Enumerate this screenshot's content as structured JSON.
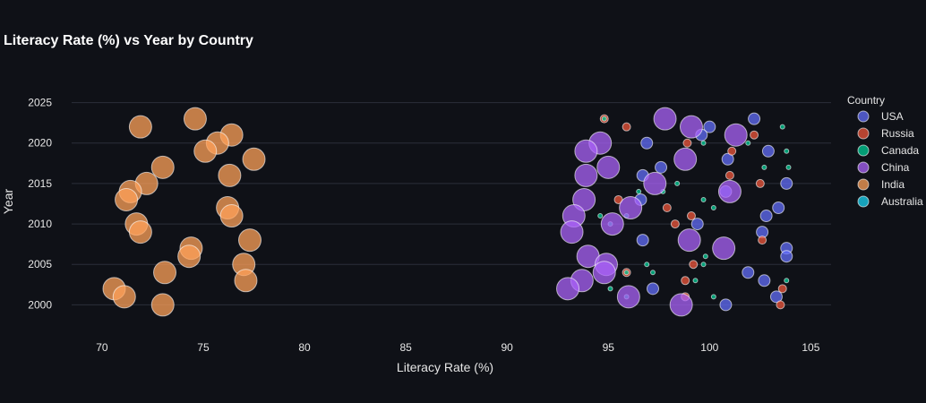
{
  "chart_data": {
    "type": "scatter",
    "title": "Literacy Rate (%) vs Year by Country",
    "xlabel": "Literacy Rate (%)",
    "ylabel": "Year",
    "xlim": [
      68.5,
      106
    ],
    "ylim": [
      1996.5,
      2027.5
    ],
    "x_ticks": [
      70,
      75,
      80,
      85,
      90,
      95,
      100,
      105
    ],
    "y_ticks": [
      2000,
      2005,
      2010,
      2015,
      2020,
      2025
    ],
    "grid": true,
    "legend_title": "Country",
    "legend_position": "right",
    "series": [
      {
        "name": "USA",
        "color": "#636efa",
        "size": 7,
        "points": [
          [
            102.2,
            2023
          ],
          [
            100.0,
            2022
          ],
          [
            99.6,
            2021
          ],
          [
            96.9,
            2020
          ],
          [
            102.9,
            2019
          ],
          [
            100.9,
            2018
          ],
          [
            97.6,
            2017
          ],
          [
            96.7,
            2016
          ],
          [
            103.8,
            2015
          ],
          [
            100.8,
            2014
          ],
          [
            96.6,
            2013
          ],
          [
            103.4,
            2012
          ],
          [
            102.8,
            2011
          ],
          [
            99.4,
            2010
          ],
          [
            102.6,
            2009
          ],
          [
            96.7,
            2008
          ],
          [
            103.8,
            2007
          ],
          [
            103.8,
            2006
          ],
          [
            101.9,
            2004
          ],
          [
            102.7,
            2003
          ],
          [
            97.2,
            2002
          ],
          [
            103.3,
            2001
          ],
          [
            100.8,
            2000
          ]
        ]
      },
      {
        "name": "Russia",
        "color": "#ef553b",
        "size": 5,
        "points": [
          [
            94.8,
            2023
          ],
          [
            95.9,
            2022
          ],
          [
            102.2,
            2021
          ],
          [
            98.9,
            2020
          ],
          [
            101.1,
            2019
          ],
          [
            101.0,
            2016
          ],
          [
            102.5,
            2015
          ],
          [
            95.5,
            2013
          ],
          [
            97.9,
            2012
          ],
          [
            99.1,
            2011
          ],
          [
            98.3,
            2010
          ],
          [
            102.6,
            2008
          ],
          [
            99.2,
            2005
          ],
          [
            95.9,
            2004
          ],
          [
            98.8,
            2003
          ],
          [
            103.6,
            2002
          ],
          [
            98.8,
            2001
          ],
          [
            103.5,
            2000
          ]
        ]
      },
      {
        "name": "Canada",
        "color": "#00cc96",
        "size": 2.5,
        "points": [
          [
            94.8,
            2023
          ],
          [
            99.7,
            2020
          ],
          [
            102.7,
            2017
          ],
          [
            96.5,
            2014
          ],
          [
            99.7,
            2013
          ],
          [
            100.2,
            2012
          ],
          [
            94.6,
            2011
          ],
          [
            95.9,
            2011
          ],
          [
            99.8,
            2006
          ],
          [
            96.9,
            2005
          ],
          [
            95.9,
            2004
          ],
          [
            99.3,
            2003
          ],
          [
            103.8,
            2003
          ],
          [
            95.9,
            2001
          ],
          [
            100.2,
            2001
          ],
          [
            103.6,
            2022
          ],
          [
            103.8,
            2019
          ],
          [
            101.9,
            2020
          ],
          [
            103.9,
            2017
          ],
          [
            98.4,
            2015
          ],
          [
            95.1,
            2010
          ],
          [
            95.1,
            2002
          ],
          [
            99.7,
            2005
          ],
          [
            97.2,
            2004
          ],
          [
            97.7,
            2014
          ]
        ]
      },
      {
        "name": "China",
        "color": "#ab63fa",
        "size": 12,
        "points": [
          [
            97.8,
            2023
          ],
          [
            99.1,
            2022
          ],
          [
            101.3,
            2021
          ],
          [
            94.6,
            2020
          ],
          [
            93.9,
            2019
          ],
          [
            98.8,
            2018
          ],
          [
            95.0,
            2017
          ],
          [
            93.9,
            2016
          ],
          [
            97.3,
            2015
          ],
          [
            101.0,
            2014
          ],
          [
            93.8,
            2013
          ],
          [
            96.1,
            2012
          ],
          [
            93.3,
            2011
          ],
          [
            95.2,
            2010
          ],
          [
            93.2,
            2009
          ],
          [
            99.0,
            2008
          ],
          [
            100.7,
            2007
          ],
          [
            94.0,
            2006
          ],
          [
            94.9,
            2005
          ],
          [
            94.8,
            2004
          ],
          [
            93.7,
            2003
          ],
          [
            93.0,
            2002
          ],
          [
            96.0,
            2001
          ],
          [
            98.6,
            2000
          ]
        ]
      },
      {
        "name": "India",
        "color": "#ffa15a",
        "size": 12,
        "points": [
          [
            74.6,
            2023
          ],
          [
            71.9,
            2022
          ],
          [
            76.4,
            2021
          ],
          [
            75.7,
            2020
          ],
          [
            75.1,
            2019
          ],
          [
            77.5,
            2018
          ],
          [
            73.0,
            2017
          ],
          [
            76.3,
            2016
          ],
          [
            72.2,
            2015
          ],
          [
            71.4,
            2014
          ],
          [
            71.2,
            2013
          ],
          [
            76.2,
            2012
          ],
          [
            76.4,
            2011
          ],
          [
            71.7,
            2010
          ],
          [
            71.9,
            2009
          ],
          [
            77.3,
            2008
          ],
          [
            74.4,
            2007
          ],
          [
            74.3,
            2006
          ],
          [
            77.0,
            2005
          ],
          [
            73.1,
            2004
          ],
          [
            77.1,
            2003
          ],
          [
            70.6,
            2002
          ],
          [
            71.1,
            2001
          ],
          [
            73.0,
            2000
          ]
        ]
      },
      {
        "name": "Australia",
        "color": "#19d3f3",
        "size": 2,
        "points": []
      }
    ]
  }
}
